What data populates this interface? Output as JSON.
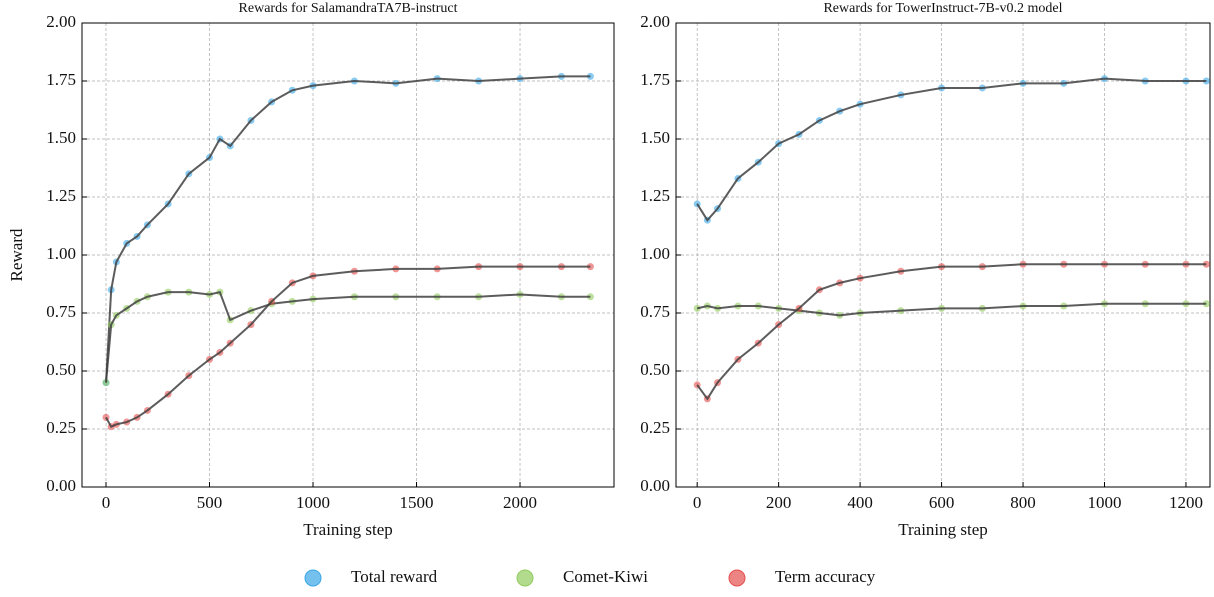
{
  "legend": [
    {
      "name": "Total reward",
      "color": "#3ba7e6"
    },
    {
      "name": "Comet-Kiwi",
      "color": "#92cc5e"
    },
    {
      "name": "Term accuracy",
      "color": "#e4504f"
    }
  ],
  "trend_color": "#3f3f3f",
  "chart_data": [
    {
      "type": "scatter",
      "title": "Rewards for SalamandraTA7B-instruct",
      "x_label": "Training step",
      "y_label": "Reward",
      "x": [
        0,
        25,
        50,
        100,
        150,
        200,
        300,
        400,
        500,
        550,
        600,
        700,
        800,
        900,
        1000,
        1200,
        1400,
        1600,
        1800,
        2000,
        2200,
        2340
      ],
      "series": [
        {
          "values": [
            0.45,
            0.85,
            0.97,
            1.05,
            1.08,
            1.13,
            1.22,
            1.35,
            1.42,
            1.5,
            1.47,
            1.58,
            1.66,
            1.71,
            1.73,
            1.75,
            1.74,
            1.76,
            1.75,
            1.76,
            1.77,
            1.77
          ]
        },
        {
          "values": [
            0.45,
            0.7,
            0.74,
            0.77,
            0.8,
            0.82,
            0.84,
            0.84,
            0.83,
            0.84,
            0.72,
            0.76,
            0.79,
            0.8,
            0.81,
            0.82,
            0.82,
            0.82,
            0.82,
            0.83,
            0.82,
            0.82
          ]
        },
        {
          "values": [
            0.3,
            0.26,
            0.27,
            0.28,
            0.3,
            0.33,
            0.4,
            0.48,
            0.55,
            0.58,
            0.62,
            0.7,
            0.8,
            0.88,
            0.91,
            0.93,
            0.94,
            0.94,
            0.95,
            0.95,
            0.95,
            0.95
          ]
        }
      ],
      "xlim": [
        -116,
        2454
      ],
      "xticks": [
        0,
        500,
        1000,
        1500,
        2000
      ],
      "ylim": [
        0,
        2
      ],
      "yticks": [
        {
          "value": 0,
          "label": "0.00"
        },
        0.25,
        {
          "value": 0.5,
          "label": "0.50"
        },
        0.75,
        {
          "value": 1,
          "label": "1.00"
        },
        1.25,
        {
          "value": 1.5,
          "label": "1.50"
        },
        1.75,
        {
          "value": 2,
          "label": "2.00"
        }
      ],
      "grid": true
    },
    {
      "type": "scatter",
      "title": "Rewards for TowerInstruct-7B-v0.2 model",
      "x_label": "Training step",
      "x": [
        0,
        25,
        50,
        100,
        150,
        200,
        250,
        300,
        350,
        400,
        500,
        600,
        700,
        800,
        900,
        1000,
        1100,
        1200,
        1250
      ],
      "series": [
        {
          "values": [
            1.22,
            1.15,
            1.2,
            1.33,
            1.4,
            1.48,
            1.52,
            1.58,
            1.62,
            1.65,
            1.69,
            1.72,
            1.72,
            1.74,
            1.74,
            1.76,
            1.75,
            1.75,
            1.75
          ]
        },
        {
          "values": [
            0.77,
            0.78,
            0.77,
            0.78,
            0.78,
            0.77,
            0.76,
            0.75,
            0.74,
            0.75,
            0.76,
            0.77,
            0.77,
            0.78,
            0.78,
            0.79,
            0.79,
            0.79,
            0.79
          ]
        },
        {
          "values": [
            0.44,
            0.38,
            0.45,
            0.55,
            0.62,
            0.7,
            0.77,
            0.85,
            0.88,
            0.9,
            0.93,
            0.95,
            0.95,
            0.96,
            0.96,
            0.96,
            0.96,
            0.96,
            0.96
          ]
        }
      ],
      "xlim": [
        -52,
        1259
      ],
      "xticks": [
        0,
        200,
        400,
        600,
        800,
        1000,
        1200
      ],
      "ylim": [
        0,
        2
      ],
      "yticks": [
        {
          "value": 0,
          "label": "0.00"
        },
        0.25,
        {
          "value": 0.5,
          "label": "0.50"
        },
        0.75,
        {
          "value": 1,
          "label": "1.00"
        },
        1.25,
        {
          "value": 1.5,
          "label": "1.50"
        },
        1.75,
        {
          "value": 2,
          "label": "2.00"
        }
      ],
      "grid": true
    }
  ]
}
